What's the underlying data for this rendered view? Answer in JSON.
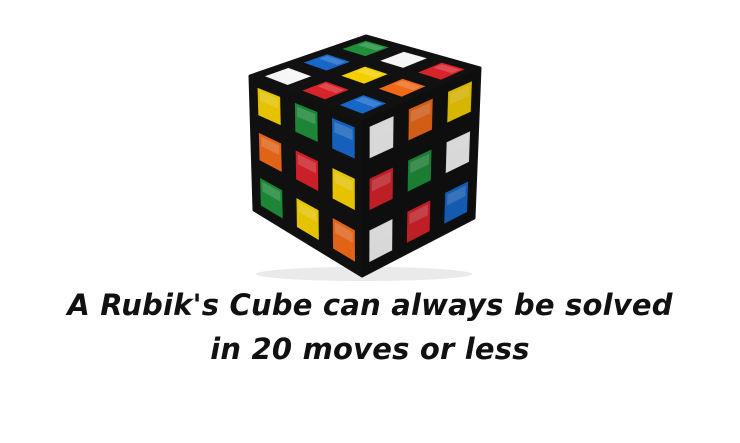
{
  "image": {
    "subject": "rubiks-cube",
    "colors": {
      "green": "#1f8f3a",
      "yellow": "#f4d000",
      "red": "#d9232b",
      "orange": "#f06a1a",
      "blue": "#1767c9",
      "white": "#f6f6f6",
      "body": "#111111"
    },
    "faces": {
      "top": [
        [
          "green",
          "white",
          "red"
        ],
        [
          "blue",
          "yellow",
          "orange"
        ],
        [
          "white",
          "red",
          "blue"
        ]
      ],
      "left": [
        [
          "yellow",
          "green",
          "blue"
        ],
        [
          "orange",
          "red",
          "yellow"
        ],
        [
          "green",
          "yellow",
          "orange"
        ]
      ],
      "right": [
        [
          "white",
          "orange",
          "yellow"
        ],
        [
          "red",
          "green",
          "white"
        ],
        [
          "white",
          "red",
          "blue"
        ]
      ]
    }
  },
  "caption": {
    "line1": "A Rubik's Cube can always be solved",
    "line2": "in 20 moves or less"
  }
}
